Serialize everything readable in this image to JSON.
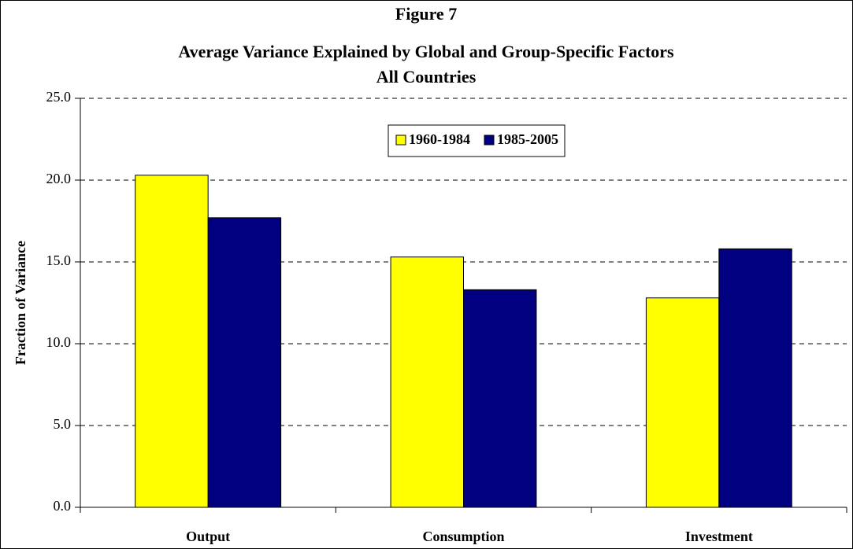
{
  "chart_data": {
    "type": "bar",
    "title": "Figure 7",
    "subtitle": "Average Variance Explained by Global and Group-Specific Factors",
    "subtitle2": "All Countries",
    "y_label": "Fraction of Variance",
    "categories": [
      "Output",
      "Consumption",
      "Investment"
    ],
    "series": [
      {
        "name": "1960-1984",
        "color": "#ffff00",
        "values": [
          20.3,
          15.3,
          12.8
        ]
      },
      {
        "name": "1985-2005",
        "color": "#000080",
        "values": [
          17.7,
          13.3,
          15.8
        ]
      }
    ],
    "ylim": [
      0,
      25
    ],
    "yticks": [
      {
        "value": 0,
        "label": "0.0"
      },
      {
        "value": 5,
        "label": "5.0"
      },
      {
        "value": 10,
        "label": "10.0"
      },
      {
        "value": 15,
        "label": "15.0"
      },
      {
        "value": 20,
        "label": "20.0"
      },
      {
        "value": 25,
        "label": "25.0"
      }
    ],
    "grid": true
  }
}
